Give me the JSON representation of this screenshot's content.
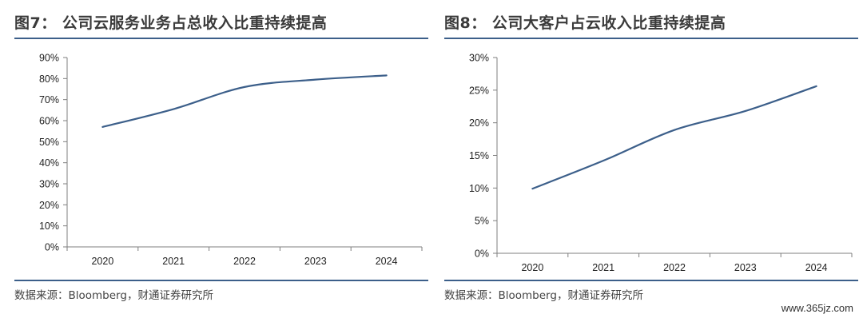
{
  "charts": [
    {
      "figure_label": "图7：",
      "title": "公司云服务业务占总收入比重持续提高",
      "source": "数据来源：Bloomberg，财通证券研究所",
      "chart_data": {
        "type": "line",
        "categories": [
          "2020",
          "2021",
          "2022",
          "2023",
          "2024"
        ],
        "series": [
          {
            "values": [
              0.57,
              0.655,
              0.76,
              0.795,
              0.815
            ],
            "color": "#3c5f8a"
          }
        ],
        "ylim": [
          0,
          0.9
        ],
        "yticks": [
          0,
          0.1,
          0.2,
          0.3,
          0.4,
          0.5,
          0.6,
          0.7,
          0.8,
          0.9
        ],
        "ytick_labels": [
          "0%",
          "10%",
          "20%",
          "30%",
          "40%",
          "50%",
          "60%",
          "70%",
          "80%",
          "90%"
        ],
        "grid": false,
        "legend": "none"
      }
    },
    {
      "figure_label": "图8：",
      "title": "公司大客户占云收入比重持续提高",
      "source": "数据来源：Bloomberg，财通证券研究所",
      "chart_data": {
        "type": "line",
        "categories": [
          "2020",
          "2021",
          "2022",
          "2023",
          "2024"
        ],
        "series": [
          {
            "values": [
              0.099,
              0.142,
              0.189,
              0.218,
              0.256
            ],
            "color": "#3c5f8a"
          }
        ],
        "ylim": [
          0,
          0.3
        ],
        "yticks": [
          0,
          0.05,
          0.1,
          0.15,
          0.2,
          0.25,
          0.3
        ],
        "ytick_labels": [
          "0%",
          "5%",
          "10%",
          "15%",
          "20%",
          "25%",
          "30%"
        ],
        "grid": false,
        "legend": "none"
      }
    }
  ],
  "watermark": "www.365jz.com"
}
